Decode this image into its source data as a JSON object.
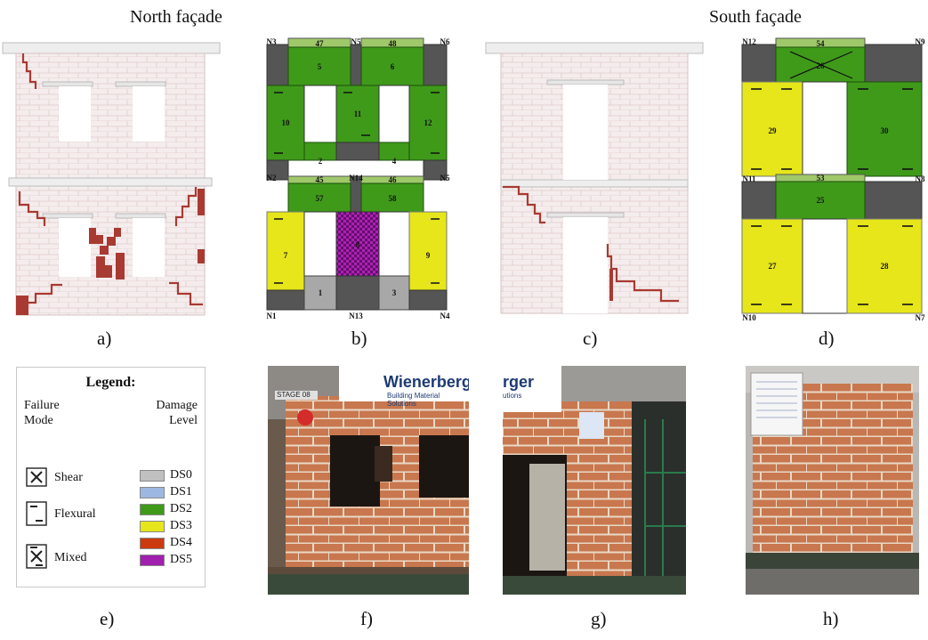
{
  "headers": {
    "north": "North façade",
    "south": "South façade"
  },
  "labels": {
    "a": "a)",
    "b": "b)",
    "c": "c)",
    "d": "d)",
    "e": "e)",
    "f": "f)",
    "g": "g)",
    "h": "h)"
  },
  "legend": {
    "title": "Legend:",
    "failure_mode_title": "Failure\nMode",
    "damage_level_title": "Damage\nLevel",
    "modes": [
      "Shear",
      "Flexural",
      "Mixed"
    ],
    "levels": [
      {
        "name": "DS0",
        "color": "#c0c0c0"
      },
      {
        "name": "DS1",
        "color": "#9db8e0"
      },
      {
        "name": "DS2",
        "color": "#3f9a1a"
      },
      {
        "name": "DS3",
        "color": "#e6e61a"
      },
      {
        "name": "DS4",
        "color": "#cc3a10"
      },
      {
        "name": "DS5",
        "color": "#a020b0"
      }
    ]
  },
  "model_b": {
    "nodes": [
      "N3",
      "N5",
      "N6",
      "N2",
      "N14",
      "N5",
      "N1",
      "N13",
      "N4"
    ],
    "elements": [
      "47",
      "48",
      "5",
      "6",
      "10",
      "11",
      "12",
      "2",
      "4",
      "45",
      "46",
      "57",
      "58",
      "7",
      "8",
      "9",
      "1",
      "3"
    ]
  },
  "model_d": {
    "nodes": [
      "N12",
      "N9",
      "N11",
      "N8",
      "N10",
      "N7"
    ],
    "elements": [
      "54",
      "26",
      "29",
      "30",
      "53",
      "25",
      "27",
      "28"
    ]
  },
  "photos": {
    "f_banner": "Wienerberger",
    "f_sub": "Building Material Solutions",
    "f_stage": "STAGE 08",
    "g_banner": "rger",
    "g_sub": "utions"
  }
}
